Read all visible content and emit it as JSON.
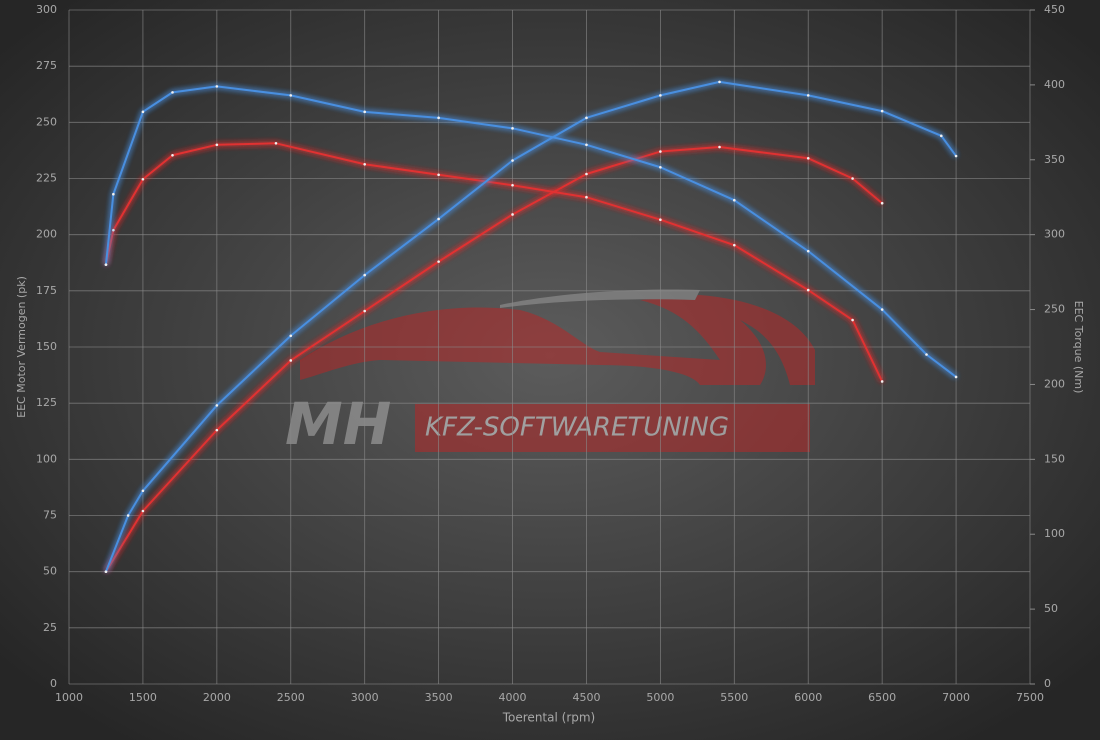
{
  "chart_data": {
    "type": "line",
    "x_label": "Toerental (rpm)",
    "y_label": "EEC Motor Vermogen (pk)",
    "y2_label": "EEC Torque (Nm)",
    "watermark": {
      "brand": "MH",
      "tagline": "KFZ-SOFTWARETUNING"
    },
    "xlim": [
      1000,
      7500
    ],
    "xticks": [
      1000,
      1500,
      2000,
      2500,
      3000,
      3500,
      4000,
      4500,
      5000,
      5500,
      6000,
      6500,
      7000,
      7500
    ],
    "ylim": [
      0,
      300
    ],
    "yticks": [
      0,
      25,
      50,
      75,
      100,
      125,
      150,
      175,
      200,
      225,
      250,
      275,
      300
    ],
    "y2lim": [
      0,
      450
    ],
    "y2ticks": [
      0,
      50,
      100,
      150,
      200,
      250,
      300,
      350,
      400,
      450
    ],
    "grid": true,
    "series": [
      {
        "color": "#e03030",
        "axis": "y",
        "x": [
          1250,
          1500,
          2000,
          2500,
          3000,
          3500,
          4000,
          4500,
          5000,
          5400,
          6000,
          6300,
          6500
        ],
        "values": [
          50,
          77,
          113,
          144,
          166,
          188,
          209,
          227,
          237,
          239,
          234,
          225,
          214
        ]
      },
      {
        "color": "#e03030",
        "axis": "y2",
        "x": [
          1250,
          1300,
          1500,
          1700,
          2000,
          2400,
          3000,
          3500,
          4000,
          4500,
          5000,
          5500,
          6000,
          6300,
          6500
        ],
        "values": [
          280,
          303,
          337,
          353,
          360,
          361,
          347,
          340,
          333,
          325,
          310,
          293,
          263,
          243,
          202
        ]
      },
      {
        "color": "#4a8fe0",
        "axis": "y",
        "x": [
          1250,
          1400,
          1500,
          2000,
          2500,
          3000,
          3500,
          4000,
          4500,
          5000,
          5400,
          6000,
          6500,
          6900,
          7000
        ],
        "values": [
          50,
          75,
          86,
          124,
          155,
          182,
          207,
          233,
          252,
          262,
          268,
          262,
          255,
          244,
          235
        ]
      },
      {
        "color": "#4a8fe0",
        "axis": "y2",
        "x": [
          1250,
          1300,
          1500,
          1700,
          2000,
          2500,
          3000,
          3500,
          4000,
          4500,
          5000,
          5500,
          6000,
          6500,
          6800,
          7000
        ],
        "values": [
          280,
          327,
          382,
          395,
          399,
          393,
          382,
          378,
          371,
          360,
          345,
          323,
          289,
          250,
          220,
          205
        ]
      }
    ]
  }
}
